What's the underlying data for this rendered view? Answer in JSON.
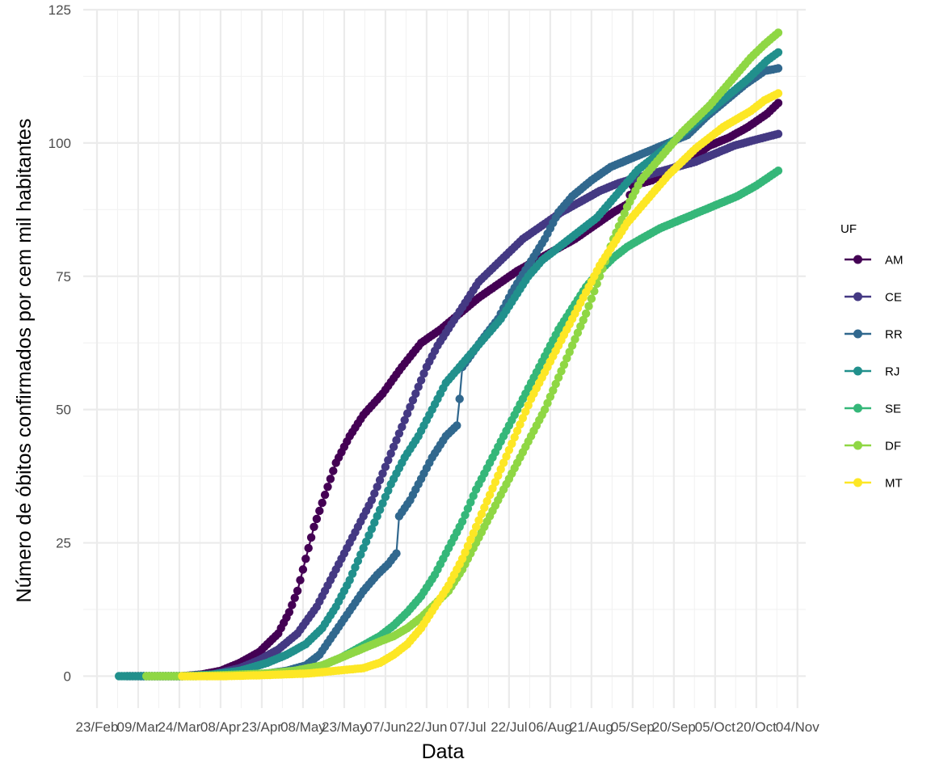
{
  "chart_data": {
    "type": "line",
    "xlabel": "Data",
    "ylabel": "Número de óbitos confirmados por cem mil habitantes",
    "legend_title": "UF",
    "legend_position": "right",
    "grid": true,
    "xlim": [
      "2020-02-18",
      "2020-11-07"
    ],
    "ylim": [
      -6,
      125
    ],
    "x_ticks": [
      "2020-02-23",
      "2020-03-09",
      "2020-03-24",
      "2020-04-08",
      "2020-04-23",
      "2020-05-08",
      "2020-05-23",
      "2020-06-07",
      "2020-06-22",
      "2020-07-07",
      "2020-07-22",
      "2020-08-06",
      "2020-08-21",
      "2020-09-05",
      "2020-09-20",
      "2020-10-05",
      "2020-10-20",
      "2020-11-04"
    ],
    "x_tick_labels": [
      "23/Feb",
      "09/Mar",
      "24/Mar",
      "08/Apr",
      "23/Apr",
      "08/May",
      "23/May",
      "07/Jun",
      "22/Jun",
      "07/Jul",
      "22/Jul",
      "06/Aug",
      "21/Aug",
      "05/Sep",
      "20/Sep",
      "05/Oct",
      "20/Oct",
      "04/Nov"
    ],
    "y_ticks": [
      0,
      25,
      50,
      75,
      100,
      125
    ],
    "y_tick_labels": [
      "0",
      "25",
      "50",
      "75",
      "100",
      "125"
    ],
    "series": [
      {
        "name": "AM",
        "color": "#440154",
        "points": [
          [
            "2020-03-05",
            0
          ],
          [
            "2020-03-25",
            0
          ],
          [
            "2020-04-01",
            0.3
          ],
          [
            "2020-04-08",
            1.0
          ],
          [
            "2020-04-15",
            2.5
          ],
          [
            "2020-04-22",
            4.5
          ],
          [
            "2020-04-29",
            8
          ],
          [
            "2020-05-03",
            12
          ],
          [
            "2020-05-06",
            16
          ],
          [
            "2020-05-09",
            22
          ],
          [
            "2020-05-12",
            28
          ],
          [
            "2020-05-16",
            34
          ],
          [
            "2020-05-20",
            40
          ],
          [
            "2020-05-25",
            45
          ],
          [
            "2020-05-30",
            49
          ],
          [
            "2020-06-06",
            53
          ],
          [
            "2020-06-13",
            58
          ],
          [
            "2020-06-20",
            62.5
          ],
          [
            "2020-06-27",
            65
          ],
          [
            "2020-07-04",
            68
          ],
          [
            "2020-07-11",
            71
          ],
          [
            "2020-07-18",
            73.5
          ],
          [
            "2020-07-25",
            76
          ],
          [
            "2020-08-01",
            78
          ],
          [
            "2020-08-08",
            80
          ],
          [
            "2020-08-15",
            82
          ],
          [
            "2020-08-22",
            84.5
          ],
          [
            "2020-08-29",
            87
          ],
          [
            "2020-09-03",
            88.5
          ],
          [
            "2020-09-05",
            92
          ],
          [
            "2020-09-12",
            93
          ],
          [
            "2020-09-19",
            95
          ],
          [
            "2020-09-26",
            97
          ],
          [
            "2020-10-03",
            99.5
          ],
          [
            "2020-10-10",
            101
          ],
          [
            "2020-10-17",
            103
          ],
          [
            "2020-10-24",
            105.5
          ],
          [
            "2020-10-28",
            107.5
          ]
        ]
      },
      {
        "name": "CE",
        "color": "#443983",
        "points": [
          [
            "2020-03-10",
            0
          ],
          [
            "2020-03-25",
            0
          ],
          [
            "2020-04-05",
            0.3
          ],
          [
            "2020-04-15",
            1.5
          ],
          [
            "2020-04-22",
            3
          ],
          [
            "2020-04-29",
            5
          ],
          [
            "2020-05-06",
            8
          ],
          [
            "2020-05-13",
            13
          ],
          [
            "2020-05-17",
            17
          ],
          [
            "2020-05-21",
            21
          ],
          [
            "2020-05-25",
            25
          ],
          [
            "2020-05-29",
            29
          ],
          [
            "2020-06-02",
            33
          ],
          [
            "2020-06-06",
            38
          ],
          [
            "2020-06-10",
            43
          ],
          [
            "2020-06-14",
            48
          ],
          [
            "2020-06-18",
            53
          ],
          [
            "2020-06-22",
            58
          ],
          [
            "2020-06-26",
            62
          ],
          [
            "2020-07-01",
            66
          ],
          [
            "2020-07-06",
            70
          ],
          [
            "2020-07-11",
            74
          ],
          [
            "2020-07-16",
            76.5
          ],
          [
            "2020-07-21",
            79
          ],
          [
            "2020-07-27",
            82
          ],
          [
            "2020-08-03",
            84.5
          ],
          [
            "2020-08-10",
            87
          ],
          [
            "2020-08-17",
            89
          ],
          [
            "2020-08-24",
            91
          ],
          [
            "2020-08-31",
            92.5
          ],
          [
            "2020-09-07",
            93.5
          ],
          [
            "2020-09-14",
            94.5
          ],
          [
            "2020-09-21",
            95.5
          ],
          [
            "2020-09-28",
            96.5
          ],
          [
            "2020-10-05",
            98
          ],
          [
            "2020-10-12",
            99.5
          ],
          [
            "2020-10-19",
            100.5
          ],
          [
            "2020-10-28",
            101.7
          ]
        ]
      },
      {
        "name": "RR",
        "color": "#31688e",
        "points": [
          [
            "2020-04-03",
            0
          ],
          [
            "2020-04-15",
            0.2
          ],
          [
            "2020-04-25",
            0.5
          ],
          [
            "2020-05-02",
            1
          ],
          [
            "2020-05-09",
            2
          ],
          [
            "2020-05-14",
            4
          ],
          [
            "2020-05-18",
            7
          ],
          [
            "2020-05-22",
            10
          ],
          [
            "2020-05-26",
            13
          ],
          [
            "2020-05-30",
            16
          ],
          [
            "2020-06-04",
            19
          ],
          [
            "2020-06-08",
            21
          ],
          [
            "2020-06-11",
            23
          ],
          [
            "2020-06-12",
            30
          ],
          [
            "2020-06-16",
            33
          ],
          [
            "2020-06-20",
            37
          ],
          [
            "2020-06-24",
            41
          ],
          [
            "2020-06-29",
            45
          ],
          [
            "2020-07-03",
            47
          ],
          [
            "2020-07-04",
            52
          ],
          [
            "2020-07-05",
            58
          ],
          [
            "2020-07-12",
            63
          ],
          [
            "2020-07-18",
            67
          ],
          [
            "2020-07-23",
            72
          ],
          [
            "2020-07-29",
            77
          ],
          [
            "2020-08-04",
            82
          ],
          [
            "2020-08-09",
            87
          ],
          [
            "2020-08-14",
            90
          ],
          [
            "2020-08-21",
            93
          ],
          [
            "2020-08-28",
            95.5
          ],
          [
            "2020-09-04",
            97
          ],
          [
            "2020-09-11",
            98.5
          ],
          [
            "2020-09-18",
            100
          ],
          [
            "2020-09-25",
            101.5
          ],
          [
            "2020-10-02",
            105
          ],
          [
            "2020-10-09",
            108
          ],
          [
            "2020-10-16",
            111
          ],
          [
            "2020-10-23",
            113.5
          ],
          [
            "2020-10-28",
            114
          ]
        ]
      },
      {
        "name": "RJ",
        "color": "#21908c",
        "points": [
          [
            "2020-03-02",
            0
          ],
          [
            "2020-03-25",
            0
          ],
          [
            "2020-04-05",
            0.3
          ],
          [
            "2020-04-15",
            1
          ],
          [
            "2020-04-25",
            2.5
          ],
          [
            "2020-05-02",
            4
          ],
          [
            "2020-05-09",
            6
          ],
          [
            "2020-05-15",
            9
          ],
          [
            "2020-05-20",
            13
          ],
          [
            "2020-05-25",
            18
          ],
          [
            "2020-05-30",
            24
          ],
          [
            "2020-06-04",
            30
          ],
          [
            "2020-06-09",
            36
          ],
          [
            "2020-06-14",
            41
          ],
          [
            "2020-06-19",
            45
          ],
          [
            "2020-06-24",
            50
          ],
          [
            "2020-06-29",
            55
          ],
          [
            "2020-07-04",
            58
          ],
          [
            "2020-07-09",
            61
          ],
          [
            "2020-07-14",
            64
          ],
          [
            "2020-07-19",
            67
          ],
          [
            "2020-07-24",
            71
          ],
          [
            "2020-07-29",
            75
          ],
          [
            "2020-08-03",
            78
          ],
          [
            "2020-08-08",
            80
          ],
          [
            "2020-08-13",
            82
          ],
          [
            "2020-08-18",
            84
          ],
          [
            "2020-08-23",
            86
          ],
          [
            "2020-08-28",
            89
          ],
          [
            "2020-09-02",
            92
          ],
          [
            "2020-09-07",
            95
          ],
          [
            "2020-09-12",
            97
          ],
          [
            "2020-09-19",
            100
          ],
          [
            "2020-09-26",
            103
          ],
          [
            "2020-10-03",
            106
          ],
          [
            "2020-10-10",
            109
          ],
          [
            "2020-10-17",
            112
          ],
          [
            "2020-10-24",
            115.5
          ],
          [
            "2020-10-28",
            117
          ]
        ]
      },
      {
        "name": "SE",
        "color": "#35b779",
        "points": [
          [
            "2020-03-12",
            0
          ],
          [
            "2020-03-30",
            0
          ],
          [
            "2020-04-10",
            0.2
          ],
          [
            "2020-04-25",
            0.5
          ],
          [
            "2020-05-05",
            1
          ],
          [
            "2020-05-15",
            2
          ],
          [
            "2020-05-22",
            3.5
          ],
          [
            "2020-05-29",
            5.5
          ],
          [
            "2020-06-05",
            7.5
          ],
          [
            "2020-06-10",
            9.5
          ],
          [
            "2020-06-15",
            12
          ],
          [
            "2020-06-20",
            15
          ],
          [
            "2020-06-25",
            19
          ],
          [
            "2020-06-30",
            24
          ],
          [
            "2020-07-05",
            29
          ],
          [
            "2020-07-10",
            35
          ],
          [
            "2020-07-15",
            40
          ],
          [
            "2020-07-20",
            45
          ],
          [
            "2020-07-25",
            50
          ],
          [
            "2020-07-30",
            55
          ],
          [
            "2020-08-04",
            60
          ],
          [
            "2020-08-09",
            65
          ],
          [
            "2020-08-14",
            69
          ],
          [
            "2020-08-19",
            73
          ],
          [
            "2020-08-24",
            76
          ],
          [
            "2020-08-29",
            78.5
          ],
          [
            "2020-09-03",
            80.5
          ],
          [
            "2020-09-08",
            82
          ],
          [
            "2020-09-15",
            84
          ],
          [
            "2020-09-22",
            85.5
          ],
          [
            "2020-09-29",
            87
          ],
          [
            "2020-10-06",
            88.5
          ],
          [
            "2020-10-13",
            90
          ],
          [
            "2020-10-20",
            92
          ],
          [
            "2020-10-28",
            94.8
          ]
        ]
      },
      {
        "name": "DF",
        "color": "#8fd744",
        "points": [
          [
            "2020-03-12",
            0
          ],
          [
            "2020-03-30",
            0
          ],
          [
            "2020-04-10",
            0.2
          ],
          [
            "2020-04-25",
            0.5
          ],
          [
            "2020-05-05",
            1
          ],
          [
            "2020-05-15",
            2
          ],
          [
            "2020-05-22",
            3.5
          ],
          [
            "2020-05-29",
            5
          ],
          [
            "2020-06-05",
            6.5
          ],
          [
            "2020-06-10",
            7.5
          ],
          [
            "2020-06-15",
            9
          ],
          [
            "2020-06-20",
            11
          ],
          [
            "2020-06-25",
            13.5
          ],
          [
            "2020-06-30",
            16
          ],
          [
            "2020-07-05",
            20
          ],
          [
            "2020-07-10",
            25
          ],
          [
            "2020-07-15",
            30
          ],
          [
            "2020-07-20",
            35
          ],
          [
            "2020-07-25",
            40
          ],
          [
            "2020-07-30",
            45
          ],
          [
            "2020-08-04",
            50
          ],
          [
            "2020-08-09",
            56
          ],
          [
            "2020-08-14",
            62
          ],
          [
            "2020-08-19",
            68
          ],
          [
            "2020-08-24",
            75
          ],
          [
            "2020-08-29",
            82
          ],
          [
            "2020-09-03",
            88
          ],
          [
            "2020-09-08",
            93
          ],
          [
            "2020-09-13",
            96
          ],
          [
            "2020-09-18",
            99
          ],
          [
            "2020-09-23",
            102
          ],
          [
            "2020-09-28",
            104.5
          ],
          [
            "2020-10-03",
            107
          ],
          [
            "2020-10-08",
            110
          ],
          [
            "2020-10-13",
            113
          ],
          [
            "2020-10-18",
            116
          ],
          [
            "2020-10-23",
            118.5
          ],
          [
            "2020-10-28",
            120.7
          ]
        ]
      },
      {
        "name": "MT",
        "color": "#fde725",
        "points": [
          [
            "2020-03-25",
            0
          ],
          [
            "2020-04-10",
            0
          ],
          [
            "2020-04-25",
            0.2
          ],
          [
            "2020-05-10",
            0.5
          ],
          [
            "2020-05-20",
            1
          ],
          [
            "2020-05-30",
            1.5
          ],
          [
            "2020-06-05",
            2.5
          ],
          [
            "2020-06-10",
            4
          ],
          [
            "2020-06-15",
            6
          ],
          [
            "2020-06-20",
            9
          ],
          [
            "2020-06-25",
            13
          ],
          [
            "2020-06-30",
            17
          ],
          [
            "2020-07-05",
            22
          ],
          [
            "2020-07-10",
            28
          ],
          [
            "2020-07-15",
            34
          ],
          [
            "2020-07-20",
            40
          ],
          [
            "2020-07-25",
            46
          ],
          [
            "2020-07-30",
            52
          ],
          [
            "2020-08-04",
            57
          ],
          [
            "2020-08-09",
            62
          ],
          [
            "2020-08-14",
            67
          ],
          [
            "2020-08-19",
            72
          ],
          [
            "2020-08-24",
            77
          ],
          [
            "2020-08-29",
            81
          ],
          [
            "2020-09-03",
            85
          ],
          [
            "2020-09-08",
            88
          ],
          [
            "2020-09-13",
            91
          ],
          [
            "2020-09-18",
            94
          ],
          [
            "2020-09-23",
            96.5
          ],
          [
            "2020-09-28",
            99
          ],
          [
            "2020-10-03",
            101
          ],
          [
            "2020-10-08",
            103
          ],
          [
            "2020-10-13",
            104.5
          ],
          [
            "2020-10-18",
            106
          ],
          [
            "2020-10-23",
            108
          ],
          [
            "2020-10-28",
            109.3
          ]
        ]
      }
    ]
  }
}
